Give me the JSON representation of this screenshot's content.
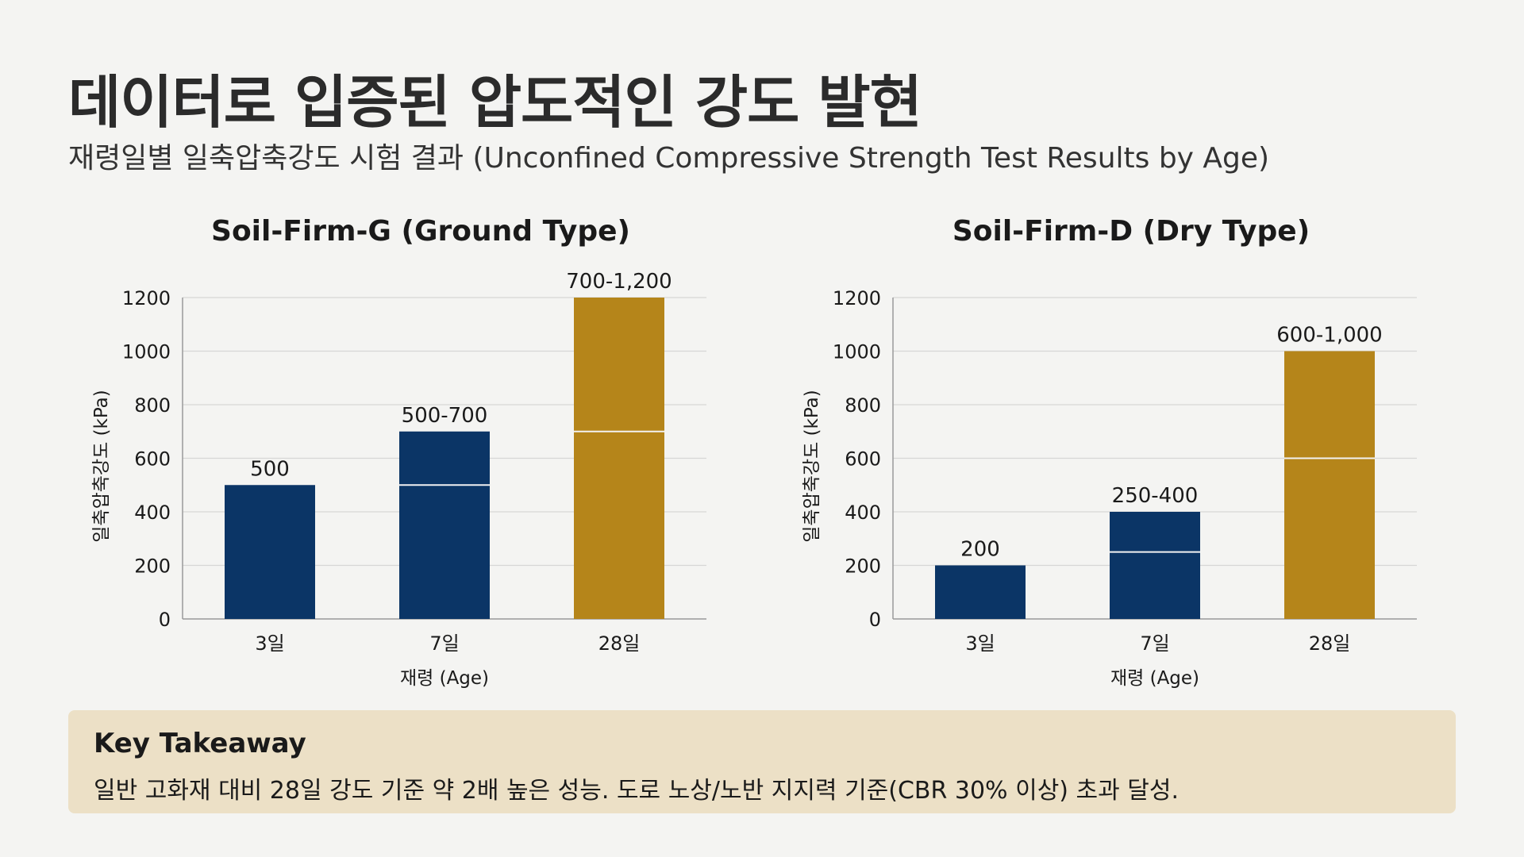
{
  "header": {
    "title": "데이터로 입증된 압도적인 강도 발현",
    "subtitle": "재령일별 일축압축강도 시험 결과 (Unconfined Compressive Strength Test Results by Age)"
  },
  "colors": {
    "navy": "#0b3566",
    "gold": "#b5851a",
    "grid": "#d6d6d6",
    "divider": "#f2f2f2"
  },
  "chart_data": [
    {
      "type": "bar",
      "title": "Soil-Firm-G (Ground Type)",
      "xlabel": "재령 (Age)",
      "ylabel": "일축압축강도 (kPa)",
      "ylim": [
        0,
        1200
      ],
      "yticks": [
        "0",
        "200",
        "400",
        "600",
        "800",
        "1000",
        "1200"
      ],
      "categories": [
        "3일",
        "7일",
        "28일"
      ],
      "bars": [
        {
          "low": 500,
          "high": 500,
          "label": "500",
          "color": "navy"
        },
        {
          "low": 500,
          "high": 700,
          "label": "500-700",
          "color": "navy"
        },
        {
          "low": 700,
          "high": 1200,
          "label": "700-1,200",
          "color": "gold"
        }
      ],
      "grid": true
    },
    {
      "type": "bar",
      "title": "Soil-Firm-D (Dry Type)",
      "xlabel": "재령 (Age)",
      "ylabel": "일축압축강도 (kPa)",
      "ylim": [
        0,
        1200
      ],
      "yticks": [
        "0",
        "200",
        "400",
        "600",
        "800",
        "1000",
        "1200"
      ],
      "categories": [
        "3일",
        "7일",
        "28일"
      ],
      "bars": [
        {
          "low": 200,
          "high": 200,
          "label": "200",
          "color": "navy"
        },
        {
          "low": 250,
          "high": 400,
          "label": "250-400",
          "color": "navy"
        },
        {
          "low": 600,
          "high": 1000,
          "label": "600-1,000",
          "color": "gold"
        }
      ],
      "grid": true
    }
  ],
  "takeaway": {
    "title": "Key Takeaway",
    "text": "일반 고화재 대비 28일 강도 기준 약 2배 높은 성능. 도로 노상/노반 지지력 기준(CBR 30% 이상) 초과 달성."
  }
}
